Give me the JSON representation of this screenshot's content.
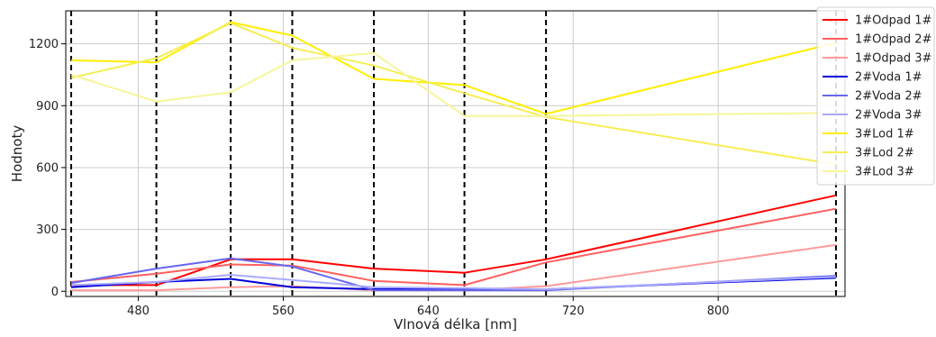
{
  "chart_data": {
    "type": "line",
    "title": "",
    "xlabel": "Vlnová délka [nm]",
    "ylabel": "Hodnoty",
    "xlim": [
      440,
      870
    ],
    "ylim": [
      -25,
      1360
    ],
    "xticks": [
      480,
      560,
      640,
      720,
      800
    ],
    "yticks": [
      0,
      300,
      600,
      900,
      1200
    ],
    "grid": true,
    "legend_position": "top-right",
    "x": [
      443,
      490,
      531,
      565,
      610,
      660,
      705,
      865
    ],
    "vertical_markers": [
      443,
      490,
      531,
      565,
      610,
      660,
      705,
      865
    ],
    "series": [
      {
        "name": "1#Odpad 1#",
        "color": "#ff0000",
        "values": [
          30,
          30,
          155,
          155,
          110,
          90,
          155,
          465
        ]
      },
      {
        "name": "1#Odpad 2#",
        "color": "#ff6060",
        "values": [
          45,
          85,
          130,
          125,
          50,
          30,
          140,
          400
        ]
      },
      {
        "name": "1#Odpad 3#",
        "color": "#ff9a9a",
        "values": [
          5,
          5,
          20,
          25,
          5,
          5,
          25,
          225
        ]
      },
      {
        "name": "2#Voda 1#",
        "color": "#0000dd",
        "values": [
          20,
          45,
          60,
          20,
          10,
          10,
          10,
          65
        ]
      },
      {
        "name": "2#Voda 2#",
        "color": "#6666ee",
        "values": [
          40,
          110,
          160,
          120,
          5,
          5,
          5,
          75
        ]
      },
      {
        "name": "2#Voda 3#",
        "color": "#aaaaff",
        "values": [
          30,
          45,
          80,
          55,
          20,
          15,
          10,
          70
        ]
      },
      {
        "name": "3#Lod 1#",
        "color": "#ffee00",
        "values": [
          1120,
          1110,
          1305,
          1240,
          1030,
          1000,
          860,
          1205
        ]
      },
      {
        "name": "3#Lod 2#",
        "color": "#f5ee55",
        "values": [
          1035,
          1130,
          1300,
          1180,
          1095,
          960,
          845,
          615
        ]
      },
      {
        "name": "3#Lod 3#",
        "color": "#f7f59a",
        "values": [
          1050,
          920,
          965,
          1120,
          1155,
          850,
          850,
          865
        ]
      }
    ]
  }
}
